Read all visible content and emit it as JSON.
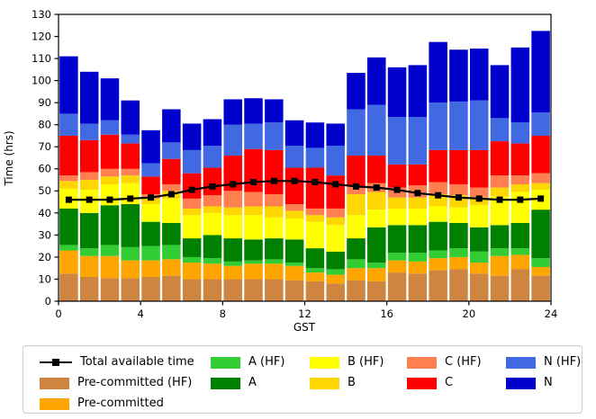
{
  "chart_data": {
    "type": "bar",
    "stacked": true,
    "title": "",
    "xlabel": "GST",
    "ylabel": "Time (hrs)",
    "xlim": [
      0,
      24
    ],
    "ylim": [
      0,
      130
    ],
    "x_ticks": [
      0,
      4,
      8,
      12,
      16,
      20,
      24
    ],
    "y_ticks": [
      0,
      10,
      20,
      30,
      40,
      50,
      60,
      70,
      80,
      90,
      100,
      110,
      120,
      130
    ],
    "grid": false,
    "bar_width_fraction": 0.9,
    "hours": [
      0,
      1,
      2,
      3,
      4,
      5,
      6,
      7,
      8,
      9,
      10,
      11,
      12,
      13,
      14,
      15,
      16,
      17,
      18,
      19,
      20,
      21,
      22,
      23
    ],
    "x": [
      0.5,
      1.5,
      2.5,
      3.5,
      4.5,
      5.5,
      6.5,
      7.5,
      8.5,
      9.5,
      10.5,
      11.5,
      12.5,
      13.5,
      14.5,
      15.5,
      16.5,
      17.5,
      18.5,
      19.5,
      20.5,
      21.5,
      22.5,
      23.5
    ],
    "series": [
      {
        "name": "Pre-committed (HF)",
        "color": "#CD853F",
        "values": [
          12.5,
          11,
          10.5,
          10.5,
          11,
          11.5,
          10,
          10,
          10,
          10,
          10,
          9.5,
          9,
          8,
          9.5,
          9,
          13,
          12.5,
          14,
          14.5,
          12.5,
          11.5,
          14.5,
          11.5
        ]
      },
      {
        "name": "Pre-committed",
        "color": "#FFA500",
        "values": [
          10.5,
          9.5,
          10,
          8,
          7.5,
          7.5,
          7.5,
          7,
          6,
          7,
          7,
          6.5,
          4,
          4,
          5.5,
          6,
          5.5,
          5.5,
          5.5,
          5.5,
          5,
          9,
          6.5,
          4
        ]
      },
      {
        "name": "A (HF)",
        "color": "#32CD32",
        "values": [
          2.5,
          3.5,
          5,
          6,
          6.5,
          6.5,
          2.5,
          2.5,
          2,
          1.5,
          2,
          1.5,
          2,
          2.5,
          4,
          2.5,
          3.5,
          4,
          3.5,
          4,
          5,
          3.5,
          3,
          4
        ]
      },
      {
        "name": "A",
        "color": "#008000",
        "values": [
          16.5,
          16,
          18,
          19.5,
          11,
          10,
          8.5,
          10.5,
          10.5,
          9.5,
          9.5,
          10.5,
          9,
          8,
          9.5,
          16,
          12.5,
          12.5,
          13,
          11.5,
          11,
          10.5,
          11.5,
          22
        ]
      },
      {
        "name": "B (HF)",
        "color": "#FFFF00",
        "values": [
          9,
          10.5,
          9.5,
          9.5,
          8,
          11,
          10.5,
          10,
          10.5,
          11,
          9.5,
          9.5,
          12,
          12,
          10.5,
          8,
          7.5,
          7.5,
          7,
          7,
          10,
          13,
          14,
          9
        ]
      },
      {
        "name": "B",
        "color": "#FFD700",
        "values": [
          3.5,
          4.5,
          3.5,
          3.5,
          2.5,
          3.5,
          3,
          3,
          3.5,
          4,
          5,
          3.5,
          3,
          3.5,
          9.5,
          8,
          5,
          5,
          5.5,
          5.5,
          3.5,
          4,
          3.5,
          3
        ]
      },
      {
        "name": "C (HF)",
        "color": "#FF7F50",
        "values": [
          2.5,
          3.5,
          3.5,
          3,
          2,
          3,
          4.5,
          5,
          7.5,
          6.5,
          5.5,
          3,
          3,
          4,
          3.5,
          4,
          4.5,
          5.5,
          5.5,
          5,
          4.5,
          5.5,
          4,
          4.5
        ]
      },
      {
        "name": "C",
        "color": "#FF0000",
        "values": [
          18,
          14.5,
          15.5,
          11.5,
          8,
          11.5,
          11.5,
          12.5,
          16,
          19.5,
          20,
          16.5,
          18.5,
          15,
          14,
          12.5,
          10.5,
          9.5,
          14.5,
          15.5,
          17,
          15.5,
          14.5,
          17
        ]
      },
      {
        "name": "N (HF)",
        "color": "#4169E1",
        "values": [
          10,
          7.5,
          6.5,
          4,
          6,
          7.5,
          10.5,
          10,
          14,
          11.5,
          12.5,
          10,
          9,
          13.5,
          21,
          23,
          21.5,
          21.5,
          21.5,
          22,
          22.5,
          10.5,
          9.5,
          10.5
        ]
      },
      {
        "name": "N",
        "color": "#0000CD",
        "values": [
          26,
          23.5,
          19,
          15.5,
          15,
          15,
          12,
          12,
          11.5,
          11.5,
          10.5,
          11.5,
          11.5,
          10,
          16.5,
          21.5,
          22.5,
          23.5,
          27.5,
          23.5,
          23.5,
          24,
          34,
          37
        ]
      }
    ],
    "line_series": {
      "name": "Total available time",
      "color": "#000000",
      "marker": "square",
      "values": [
        46,
        46,
        46,
        46.5,
        47,
        48.5,
        50.5,
        52,
        53,
        54,
        54.5,
        54.5,
        54,
        53,
        52,
        51.5,
        50.5,
        49,
        48,
        47,
        46.5,
        46,
        46,
        46.5
      ]
    },
    "legend": {
      "position": "bottom-outside",
      "border_color": "#cccccc",
      "columns": [
        [
          "Total available time",
          "Pre-committed (HF)",
          "Pre-committed"
        ],
        [
          "A (HF)",
          "A"
        ],
        [
          "B (HF)",
          "B"
        ],
        [
          "C (HF)",
          "C"
        ],
        [
          "N (HF)",
          "N"
        ]
      ]
    }
  }
}
